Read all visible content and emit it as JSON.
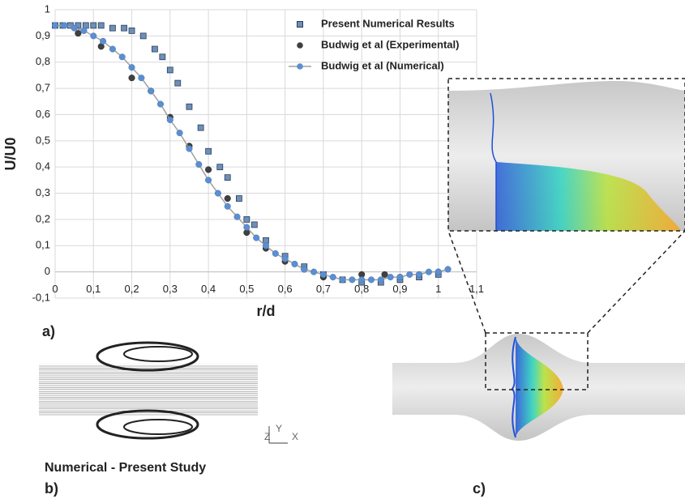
{
  "chart_data": {
    "type": "scatter",
    "xlabel": "r/d",
    "ylabel": "U/U0",
    "xlim": [
      0,
      1.1
    ],
    "ylim": [
      -0.1,
      1
    ],
    "xticks": [
      0,
      {
        "value": 0.1,
        "label": "0,1"
      },
      {
        "value": 0.2,
        "label": "0,2"
      },
      {
        "value": 0.3,
        "label": "0,3"
      },
      {
        "value": 0.4,
        "label": "0,4"
      },
      {
        "value": 0.5,
        "label": "0,5"
      },
      {
        "value": 0.6,
        "label": "0,6"
      },
      {
        "value": 0.7,
        "label": "0,7"
      },
      {
        "value": 0.8,
        "label": "0,8"
      },
      {
        "value": 0.9,
        "label": "0,9"
      },
      1,
      {
        "value": 1.1,
        "label": "1,1"
      }
    ],
    "yticks": [
      {
        "value": -0.1,
        "label": "-0,1"
      },
      0,
      {
        "value": 0.1,
        "label": "0,1"
      },
      {
        "value": 0.2,
        "label": "0,2"
      },
      {
        "value": 0.3,
        "label": "0,3"
      },
      {
        "value": 0.4,
        "label": "0,4"
      },
      {
        "value": 0.5,
        "label": "0,5"
      },
      {
        "value": 0.6,
        "label": "0,6"
      },
      {
        "value": 0.7,
        "label": "0,7"
      },
      {
        "value": 0.8,
        "label": "0,8"
      },
      {
        "value": 0.9,
        "label": "0,9"
      },
      1
    ],
    "grid": true,
    "legend": "top-right",
    "series": [
      {
        "name": "Present Numerical Results",
        "color": "#6d8fb8",
        "marker": "square",
        "x": [
          0,
          0.02,
          0.04,
          0.06,
          0.08,
          0.1,
          0.12,
          0.15,
          0.18,
          0.2,
          0.23,
          0.26,
          0.28,
          0.3,
          0.32,
          0.35,
          0.38,
          0.4,
          0.43,
          0.45,
          0.48,
          0.5,
          0.52,
          0.55,
          0.6,
          0.65,
          0.7,
          0.75,
          0.8,
          0.85,
          0.9,
          0.95,
          1.0
        ],
        "values": [
          0.94,
          0.94,
          0.94,
          0.94,
          0.94,
          0.94,
          0.94,
          0.93,
          0.93,
          0.92,
          0.9,
          0.85,
          0.82,
          0.77,
          0.72,
          0.63,
          0.55,
          0.46,
          0.4,
          0.36,
          0.28,
          0.2,
          0.18,
          0.12,
          0.06,
          0.02,
          -0.01,
          -0.03,
          -0.04,
          -0.04,
          -0.03,
          -0.02,
          -0.01
        ]
      },
      {
        "name": "Budwig et al (Experimental)",
        "color": "#404040",
        "marker": "circle",
        "x": [
          0,
          0.06,
          0.12,
          0.2,
          0.25,
          0.3,
          0.35,
          0.4,
          0.45,
          0.5,
          0.55,
          0.6,
          0.65,
          0.7,
          0.75,
          0.8,
          0.86,
          0.9,
          0.95,
          1.0
        ],
        "values": [
          0.94,
          0.91,
          0.86,
          0.74,
          0.69,
          0.59,
          0.48,
          0.39,
          0.28,
          0.15,
          0.09,
          0.04,
          0.01,
          -0.02,
          -0.03,
          -0.01,
          -0.01,
          -0.02,
          -0.01,
          0
        ]
      },
      {
        "name": "Budwig et al (Numerical)",
        "color": "#5b8fd0",
        "marker": "circle",
        "line": true,
        "line_color": "#a0a0a0",
        "x": [
          0,
          0.025,
          0.05,
          0.075,
          0.1,
          0.125,
          0.15,
          0.175,
          0.2,
          0.225,
          0.25,
          0.275,
          0.3,
          0.325,
          0.35,
          0.375,
          0.4,
          0.425,
          0.45,
          0.475,
          0.5,
          0.525,
          0.55,
          0.575,
          0.6,
          0.625,
          0.65,
          0.675,
          0.7,
          0.725,
          0.75,
          0.775,
          0.8,
          0.825,
          0.85,
          0.875,
          0.9,
          0.925,
          0.95,
          0.975,
          1.0,
          1.025
        ],
        "values": [
          0.94,
          0.94,
          0.93,
          0.92,
          0.9,
          0.88,
          0.85,
          0.82,
          0.78,
          0.74,
          0.69,
          0.64,
          0.58,
          0.53,
          0.47,
          0.41,
          0.35,
          0.3,
          0.25,
          0.21,
          0.17,
          0.13,
          0.1,
          0.07,
          0.05,
          0.03,
          0.01,
          0,
          -0.01,
          -0.02,
          -0.03,
          -0.03,
          -0.03,
          -0.03,
          -0.03,
          -0.02,
          -0.02,
          -0.01,
          -0.01,
          0,
          0,
          0.01
        ]
      }
    ]
  },
  "figure": {
    "panel_labels": [
      "a)",
      "b)",
      "c)"
    ],
    "caption_b": "Numerical - Present Study",
    "triad": [
      "Y",
      "Z",
      "X"
    ]
  }
}
